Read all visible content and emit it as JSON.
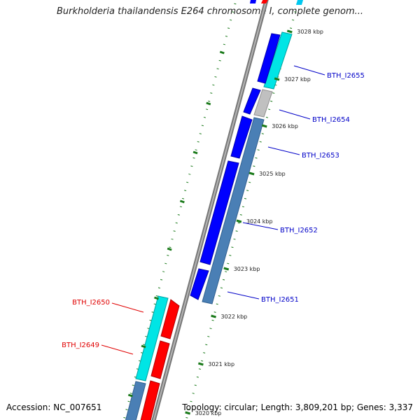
{
  "title": "Burkholderia thailandensis E264 chromosome I, complete genom...",
  "accession": "Accession: NC_007651",
  "genome_stats": "Topology: circular; Length: 3,809,201 bp; Genes: 3,337",
  "colors": {
    "backbone": "#888888",
    "forward_gene": "#0000ff",
    "reverse_gene": "#ff0000",
    "cds_cyan": "#00e5e5",
    "cds_steelblue": "#4a7fb5",
    "cds_gray": "#bbbbbb",
    "tick": "#1a7a1a",
    "label_forward": "#0000c8",
    "label_reverse": "#e00000"
  },
  "ticks": [
    {
      "label": "3028 kbp"
    },
    {
      "label": "3027 kbp"
    },
    {
      "label": "3026 kbp"
    },
    {
      "label": "3025 kbp"
    },
    {
      "label": "3024 kbp"
    },
    {
      "label": "3023 kbp"
    },
    {
      "label": "3022 kbp"
    },
    {
      "label": "3021 kbp"
    },
    {
      "label": "3020 kbp"
    }
  ],
  "genes_forward": [
    {
      "label": "BTH_I2655"
    },
    {
      "label": "BTH_I2654"
    },
    {
      "label": "BTH_I2653"
    },
    {
      "label": "BTH_I2652"
    },
    {
      "label": "BTH_I2651"
    }
  ],
  "genes_reverse": [
    {
      "label": "BTH_I2650"
    },
    {
      "label": "BTH_I2649"
    }
  ]
}
